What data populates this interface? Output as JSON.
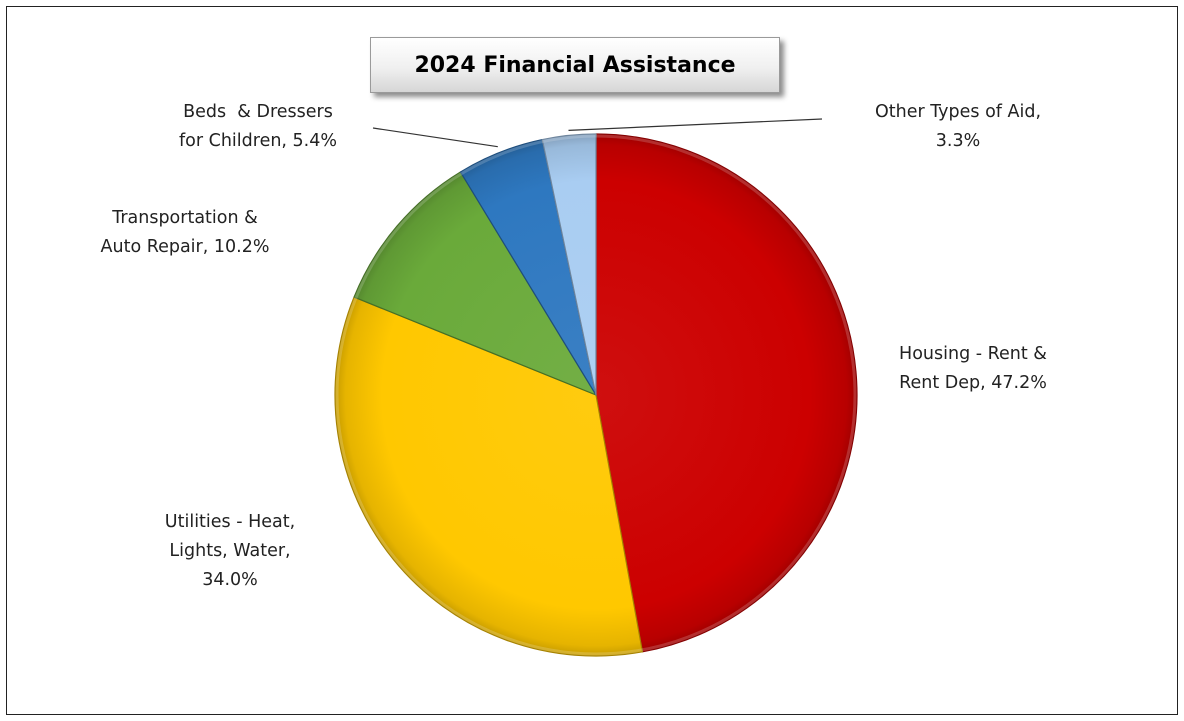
{
  "chart_data": {
    "type": "pie",
    "title": "2024 Financial Assistance",
    "slices": [
      {
        "label_lines": [
          "Housing - Rent &",
          "Rent Dep, 47.2%"
        ],
        "category": "Housing - Rent & Rent Dep",
        "value": 47.2,
        "color": "#cc0000"
      },
      {
        "label_lines": [
          "Utilities - Heat,",
          "Lights, Water,",
          "34.0%"
        ],
        "category": "Utilities - Heat, Lights, Water",
        "value": 34.0,
        "color": "#ffc800"
      },
      {
        "label_lines": [
          "Transportation &",
          "Auto Repair, 10.2%"
        ],
        "category": "Transportation & Auto Repair",
        "value": 10.2,
        "color": "#6aaa3a"
      },
      {
        "label_lines": [
          "Beds  & Dressers",
          "for Children, 5.4%"
        ],
        "category": "Beds & Dressers for Children",
        "value": 5.4,
        "color": "#2e78c0"
      },
      {
        "label_lines": [
          "Other Types of Aid,",
          "3.3%"
        ],
        "category": "Other Types of Aid",
        "value": 3.3,
        "color": "#a9cdf2"
      }
    ],
    "start_angle": "12 o'clock",
    "direction": "clockwise",
    "legend": "none",
    "data_labels": "outside"
  }
}
